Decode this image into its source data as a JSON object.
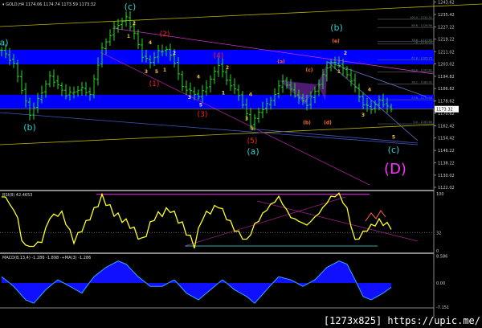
{
  "header": {
    "symbol": "GOLD,H4",
    "ohlc": "1174.06 1174.74 1173.59 1173.32"
  },
  "colors": {
    "bars": "#22dd22",
    "band": "#0000ff",
    "channel": "#b8b400",
    "rsi": "#ffff22",
    "macd": "#1010ff",
    "waves_cyan": "#33cccc",
    "waves_red": "#ff2020",
    "waves_yellow": "#f0c030",
    "waves_magenta": "#ff33ff"
  },
  "chart_data": [
    {
      "type": "line",
      "title": "GOLD,H4",
      "price_axis_labels": [
        "1243.62",
        "1235.42",
        "1227.22",
        "1219.22",
        "1211.02",
        "1203.02",
        "1194.82",
        "1186.82",
        "1178.62",
        "1170.62",
        "1162.42",
        "1154.42",
        "1146.22",
        "1138.22",
        "1130.02",
        "1122.02"
      ],
      "current_price": "1173.32",
      "ylim": [
        1120,
        1245
      ],
      "keypoints": [
        [
          0,
          1212
        ],
        [
          3,
          1203
        ],
        [
          7,
          1169.5
        ],
        [
          12,
          1194.8
        ],
        [
          16,
          1182.7
        ],
        [
          20,
          1186.9
        ],
        [
          22,
          1182.7
        ],
        [
          25,
          1213
        ],
        [
          28,
          1226.5
        ],
        [
          31,
          1233.3
        ],
        [
          33,
          1222.8
        ],
        [
          35,
          1208
        ],
        [
          37,
          1204
        ],
        [
          39,
          1211
        ],
        [
          41,
          1212.5
        ],
        [
          43,
          1204
        ],
        [
          45,
          1188
        ],
        [
          49,
          1181.6
        ],
        [
          51,
          1188
        ],
        [
          54,
          1202.7
        ],
        [
          56,
          1192.3
        ],
        [
          59,
          1182.7
        ],
        [
          62,
          1163.2
        ],
        [
          64,
          1171.1
        ],
        [
          67,
          1179
        ],
        [
          70,
          1192.3
        ],
        [
          73,
          1182.7
        ],
        [
          76,
          1176.4
        ],
        [
          79,
          1189.6
        ],
        [
          81.6,
          1204.3
        ],
        [
          84,
          1202.7
        ],
        [
          87,
          1192.3
        ],
        [
          90,
          1176.4
        ],
        [
          92,
          1173.7
        ],
        [
          94,
          1179
        ],
        [
          96,
          1174.8
        ],
        [
          97,
          1173.32
        ]
      ],
      "supply_demand_zones": [
        [
          1202.7,
          1212.2
        ],
        [
          1173.7,
          1182.7
        ]
      ],
      "fib_levels": [
        "100.0 - 1232.31",
        "88.6 - 1226.86",
        "78.6 - 1217.60",
        "76 - 1216.00",
        "61.8 - 1205.75",
        "50.0 - 1197.81",
        "38.2 - 1189.92",
        "23.6 - 1179.46",
        "0.0 - 1163.66"
      ],
      "fib_prices": [
        1232.31,
        1226.86,
        1217.6,
        1216.0,
        1205.75,
        1197.81,
        1189.92,
        1179.46,
        1163.66
      ],
      "wave_labels": [
        {
          "t": "a)",
          "i": 0.6,
          "p": 1215,
          "c": "cyan",
          "s": "big"
        },
        {
          "t": "(b)",
          "i": 7,
          "p": 1159.5,
          "c": "cyan",
          "s": "big"
        },
        {
          "t": "(c)",
          "i": 32,
          "p": 1238.6,
          "c": "cyan",
          "s": "big"
        },
        {
          "t": "(b)",
          "i": 83.4,
          "p": 1224.9,
          "c": "cyan",
          "s": "big"
        },
        {
          "t": "(a)",
          "i": 62.6,
          "p": 1143.6,
          "c": "cyan",
          "s": "big"
        },
        {
          "t": "(c)",
          "i": 97.6,
          "p": 1144.7,
          "c": "cyan",
          "s": "big"
        },
        {
          "t": "(D)",
          "i": 98,
          "p": 1131,
          "c": "magenta",
          "s": "huge"
        },
        {
          "t": "(2)",
          "i": 40.6,
          "p": 1221.2,
          "c": "red",
          "s": "mid"
        },
        {
          "t": "(1)",
          "i": 38,
          "p": 1188.5,
          "c": "red",
          "s": "mid"
        },
        {
          "t": "(4)",
          "i": 54,
          "p": 1207,
          "c": "red",
          "s": "mid"
        },
        {
          "t": "(3)",
          "i": 50,
          "p": 1168.4,
          "c": "red",
          "s": "mid"
        },
        {
          "t": "(5)",
          "i": 62.4,
          "p": 1151,
          "c": "red",
          "s": "mid"
        },
        {
          "t": "(e)",
          "i": 83.2,
          "p": 1217,
          "c": "orange",
          "s": "small"
        },
        {
          "t": "(a)",
          "i": 69.6,
          "p": 1203.5,
          "c": "orange",
          "s": "small"
        },
        {
          "t": "(c)",
          "i": 76.6,
          "p": 1198,
          "c": "orange",
          "s": "small"
        },
        {
          "t": "(b)",
          "i": 76,
          "p": 1163.5,
          "c": "orange",
          "s": "small"
        },
        {
          "t": "(d)",
          "i": 81.2,
          "p": 1163.5,
          "c": "orange",
          "s": "small"
        },
        {
          "t": "2",
          "i": 33,
          "p": 1228.5,
          "c": "yellow",
          "s": "small"
        },
        {
          "t": "1",
          "i": 31.6,
          "p": 1220,
          "c": "yellow",
          "s": "small"
        },
        {
          "t": "4",
          "i": 37,
          "p": 1216,
          "c": "yellow",
          "s": "small"
        },
        {
          "t": "3",
          "i": 36,
          "p": 1197,
          "c": "yellow",
          "s": "small"
        },
        {
          "t": "5",
          "i": 38.6,
          "p": 1197,
          "c": "yellow",
          "s": "small"
        },
        {
          "t": "1",
          "i": 40.6,
          "p": 1198,
          "c": "yellow",
          "s": "small"
        },
        {
          "t": "2",
          "i": 43,
          "p": 1209,
          "c": "white",
          "s": "small"
        },
        {
          "t": "4",
          "i": 49,
          "p": 1193.5,
          "c": "yellow",
          "s": "small"
        },
        {
          "t": "3",
          "i": 46.8,
          "p": 1180,
          "c": "white",
          "s": "small"
        },
        {
          "t": "5",
          "i": 49.6,
          "p": 1175,
          "c": "white",
          "s": "small"
        },
        {
          "t": "1",
          "i": 55.2,
          "p": 1183,
          "c": "white",
          "s": "small"
        },
        {
          "t": "2",
          "i": 56.2,
          "p": 1199.5,
          "c": "yellow",
          "s": "small"
        },
        {
          "t": "4",
          "i": 62,
          "p": 1182,
          "c": "yellow",
          "s": "small"
        },
        {
          "t": "3",
          "i": 61,
          "p": 1166,
          "c": "yellow",
          "s": "small"
        },
        {
          "t": "5",
          "i": 62.4,
          "p": 1159.5,
          "c": "yellow",
          "s": "small"
        },
        {
          "t": "2",
          "i": 85.6,
          "p": 1209,
          "c": "white",
          "s": "small"
        },
        {
          "t": "1",
          "i": 84,
          "p": 1197,
          "c": "yellow",
          "s": "small"
        },
        {
          "t": "4",
          "i": 91.6,
          "p": 1185,
          "c": "yellow",
          "s": "small"
        },
        {
          "t": "3",
          "i": 90,
          "p": 1168.4,
          "c": "yellow",
          "s": "small"
        },
        {
          "t": "5",
          "i": 97.6,
          "p": 1154,
          "c": "yellow",
          "s": "small"
        }
      ]
    },
    {
      "type": "line",
      "title": "RSI(8) 42.4653",
      "axis_labels": [
        "100",
        "32",
        "0"
      ],
      "ylim": [
        0,
        100
      ],
      "level": 32,
      "keypoints": [
        [
          1,
          94
        ],
        [
          4,
          59
        ],
        [
          5,
          17
        ],
        [
          7,
          6
        ],
        [
          10,
          17
        ],
        [
          12,
          59
        ],
        [
          15,
          66
        ],
        [
          18,
          17
        ],
        [
          22,
          59
        ],
        [
          25,
          94
        ],
        [
          28,
          66
        ],
        [
          32,
          45
        ],
        [
          35,
          17
        ],
        [
          38,
          59
        ],
        [
          42,
          73
        ],
        [
          45,
          45
        ],
        [
          48,
          10
        ],
        [
          50,
          59
        ],
        [
          54,
          80
        ],
        [
          58,
          38
        ],
        [
          61,
          17
        ],
        [
          63,
          45
        ],
        [
          66,
          73
        ],
        [
          69,
          94
        ],
        [
          72,
          59
        ],
        [
          76,
          45
        ],
        [
          79,
          66
        ],
        [
          82,
          94
        ],
        [
          84,
          99
        ],
        [
          86,
          73
        ],
        [
          88,
          17
        ],
        [
          91,
          38
        ],
        [
          94,
          52
        ],
        [
          97,
          42
        ]
      ]
    },
    {
      "type": "area",
      "title": "MACD(8,13,4) -1.286 -1.898 -+MA(3) -1.286",
      "axis_labels": [
        "8.586",
        "0.00",
        "-7.151"
      ],
      "ylim": [
        -7.151,
        8.586
      ],
      "keypoints": [
        [
          0,
          2
        ],
        [
          3,
          -1
        ],
        [
          6,
          -5
        ],
        [
          8,
          -6
        ],
        [
          11,
          -2
        ],
        [
          14,
          1
        ],
        [
          17,
          -1
        ],
        [
          20,
          -3
        ],
        [
          23,
          2
        ],
        [
          26,
          5
        ],
        [
          29,
          7
        ],
        [
          31,
          6
        ],
        [
          34,
          2
        ],
        [
          37,
          -1
        ],
        [
          40,
          -1
        ],
        [
          43,
          1
        ],
        [
          46,
          -3
        ],
        [
          49,
          -5
        ],
        [
          52,
          -2
        ],
        [
          55,
          1
        ],
        [
          58,
          -2
        ],
        [
          61,
          -4
        ],
        [
          63,
          -6
        ],
        [
          66,
          -2
        ],
        [
          69,
          2
        ],
        [
          72,
          1
        ],
        [
          75,
          -1
        ],
        [
          78,
          1
        ],
        [
          81,
          5
        ],
        [
          84,
          7
        ],
        [
          86,
          6
        ],
        [
          88,
          1
        ],
        [
          90,
          -4
        ],
        [
          92,
          -5
        ],
        [
          95,
          -3
        ],
        [
          97,
          -1.3
        ]
      ]
    }
  ],
  "watermark": "[1273x825] https://upic.me/"
}
